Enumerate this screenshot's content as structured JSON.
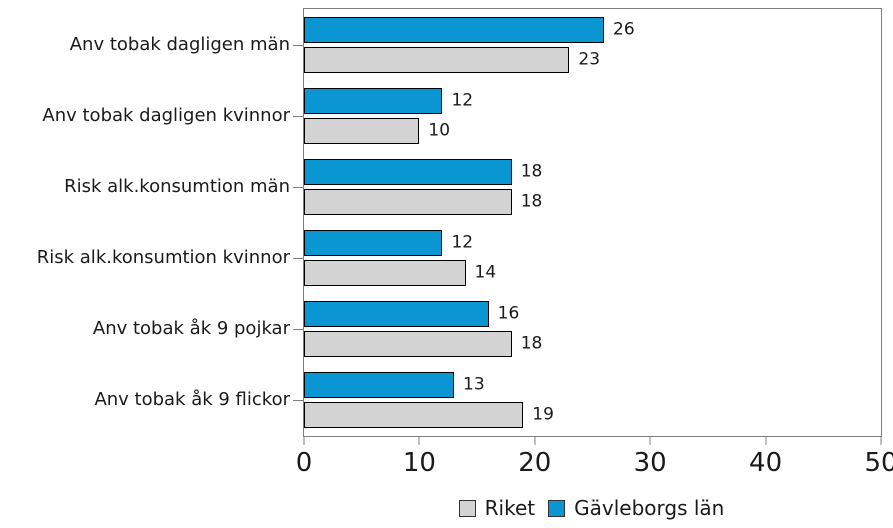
{
  "chart_data": {
    "type": "bar",
    "orientation": "horizontal",
    "categories": [
      "Anv tobak dagligen män",
      "Anv tobak dagligen kvinnor",
      "Risk alk.konsumtion män",
      "Risk alk.konsumtion kvinnor",
      "Anv tobak åk 9 pojkar",
      "Anv tobak åk 9 flickor"
    ],
    "series": [
      {
        "name": "Gävleborgs län",
        "color": "#0a96d2",
        "values": [
          26,
          12,
          18,
          12,
          16,
          13
        ]
      },
      {
        "name": "Riket",
        "color": "#d3d3d3",
        "values": [
          23,
          10,
          18,
          14,
          18,
          19
        ]
      }
    ],
    "xlim": [
      0,
      50
    ],
    "xticks": [
      0,
      10,
      20,
      30,
      40,
      50
    ],
    "bar_value_labels": true,
    "grid": false,
    "legend": {
      "position": "bottom-center",
      "entries": [
        {
          "label": "Riket",
          "color": "#d3d3d3"
        },
        {
          "label": "Gävleborgs län",
          "color": "#0a96d2"
        }
      ]
    }
  },
  "colors": {
    "bar_border": "#000000",
    "axis": "#7f7f7f",
    "text": "#1a1a1a",
    "background": "#ffffff"
  }
}
